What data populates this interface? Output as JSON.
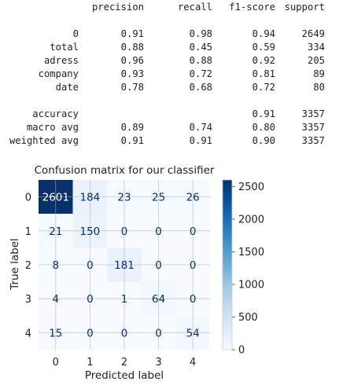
{
  "report": {
    "headers": [
      "precision",
      "recall",
      "f1-score",
      "support"
    ],
    "rows": [
      {
        "label": "0",
        "values": [
          "0.91",
          "0.98",
          "0.94",
          "2649"
        ]
      },
      {
        "label": "total",
        "values": [
          "0.88",
          "0.45",
          "0.59",
          "334"
        ]
      },
      {
        "label": "adress",
        "values": [
          "0.96",
          "0.88",
          "0.92",
          "205"
        ]
      },
      {
        "label": "company",
        "values": [
          "0.93",
          "0.72",
          "0.81",
          "89"
        ]
      },
      {
        "label": "date",
        "values": [
          "0.78",
          "0.68",
          "0.72",
          "80"
        ]
      }
    ],
    "summary": [
      {
        "label": "accuracy",
        "values": [
          "",
          "",
          "0.91",
          "3357"
        ]
      },
      {
        "label": "macro avg",
        "values": [
          "0.89",
          "0.74",
          "0.80",
          "3357"
        ]
      },
      {
        "label": "weighted avg",
        "values": [
          "0.91",
          "0.91",
          "0.90",
          "3357"
        ]
      }
    ]
  },
  "chart_data": {
    "type": "heatmap",
    "title": "Confusion matrix for our classifier",
    "xlabel": "Predicted label",
    "ylabel": "True label",
    "x_ticks": [
      "0",
      "1",
      "2",
      "3",
      "4"
    ],
    "y_ticks": [
      "0",
      "1",
      "2",
      "3",
      "4"
    ],
    "matrix": [
      [
        2601,
        184,
        23,
        25,
        26
      ],
      [
        21,
        150,
        0,
        0,
        0
      ],
      [
        8,
        0,
        181,
        0,
        0
      ],
      [
        4,
        0,
        1,
        64,
        0
      ],
      [
        15,
        0,
        0,
        0,
        54
      ]
    ],
    "colormap": "Blues",
    "vmin": 0,
    "vmax": 2601,
    "colorbar_ticks": [
      0,
      500,
      1000,
      1500,
      2000,
      2500
    ],
    "grid": true
  }
}
